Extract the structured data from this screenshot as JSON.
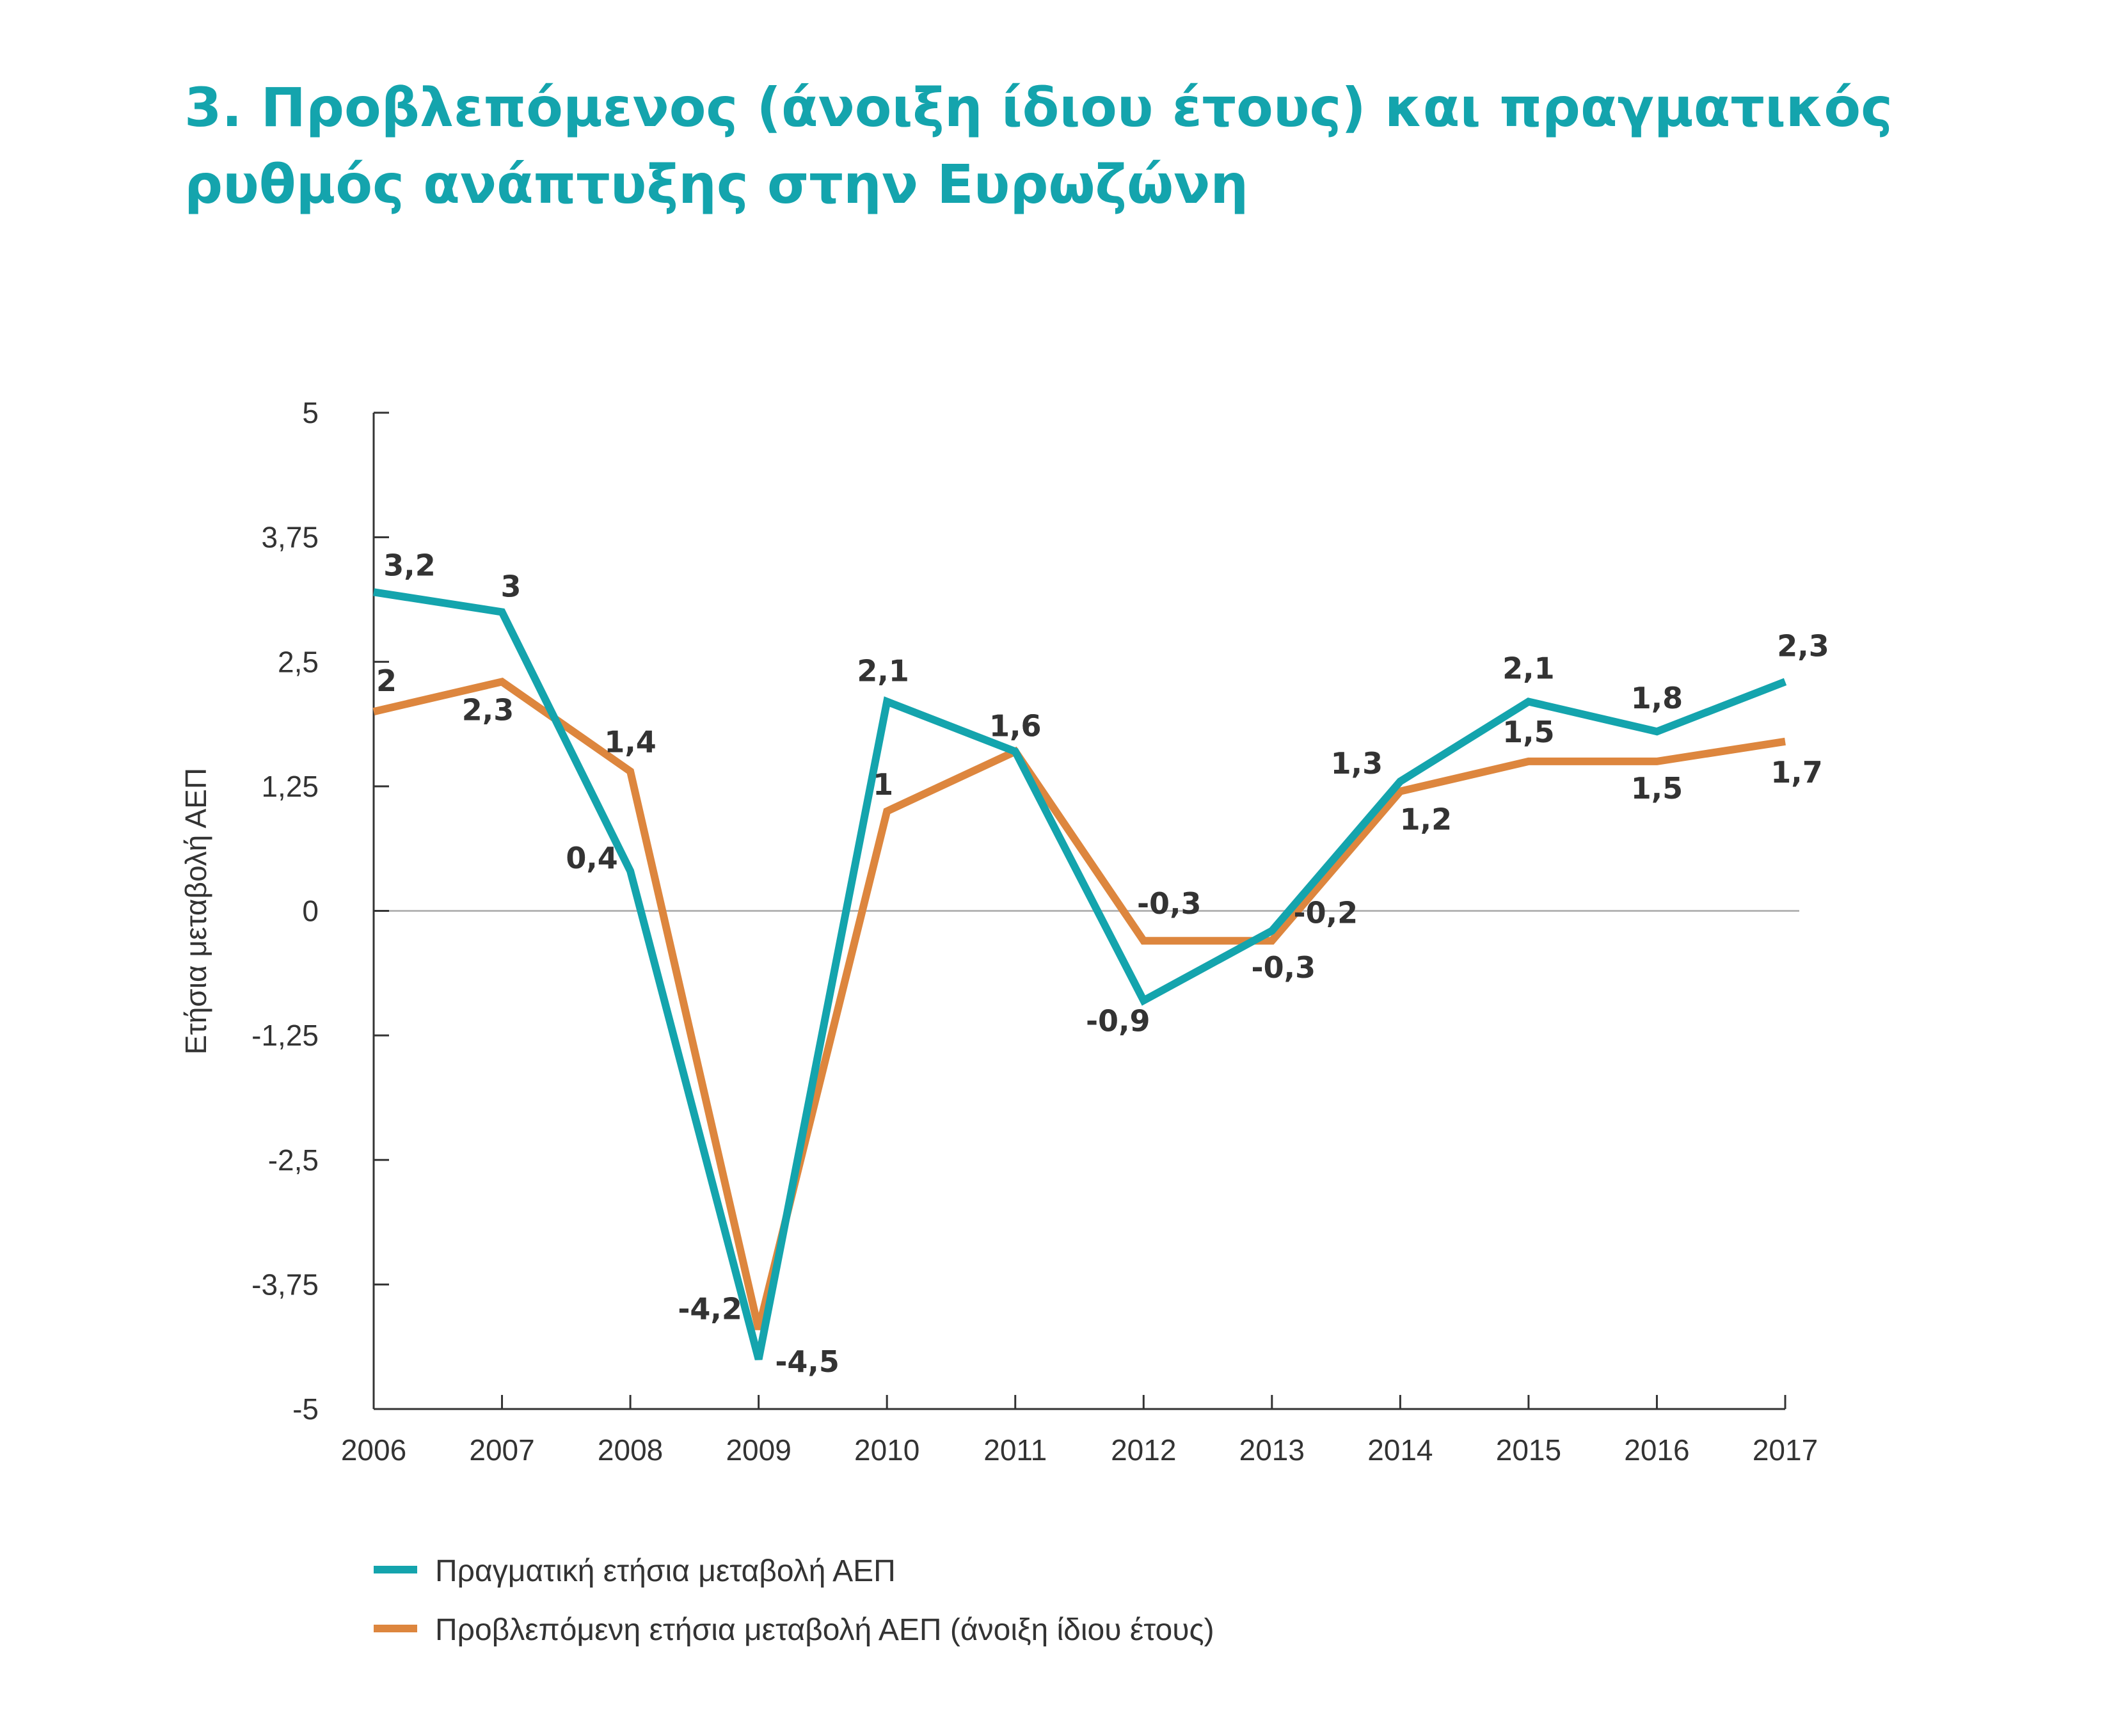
{
  "title": {
    "line1": "3. Προβλεπόμενος (άνοιξη ίδιου έτους) και πραγματικός",
    "line2": "ρυθμός ανάπτυξης στην Ευρωζώνη"
  },
  "colors": {
    "actual": "#14a4ad",
    "forecast": "#dd863e",
    "title": "#14a4ad",
    "axis": "#333333",
    "zero_line": "#b5b5b5",
    "label": "#333333"
  },
  "chart_data": {
    "type": "line",
    "title": "3. Προβλεπόμενος (άνοιξη ίδιου έτους) και πραγματικός ρυθμός ανάπτυξης στην Ευρωζώνη",
    "xlabel": "",
    "ylabel": "Ετήσια μεταβολή ΑΕΠ",
    "categories": [
      "2006",
      "2007",
      "2008",
      "2009",
      "2010",
      "2011",
      "2012",
      "2013",
      "2014",
      "2015",
      "2016",
      "2017"
    ],
    "series": [
      {
        "name": "Πραγματική ετήσια μεταβολή ΑΕΠ",
        "color": "#14a4ad",
        "values": [
          3.2,
          3,
          0.4,
          -4.5,
          2.1,
          1.6,
          -0.9,
          -0.2,
          1.3,
          2.1,
          1.8,
          2.3
        ],
        "labels": [
          "3,2",
          "3",
          "0,4",
          "-4,5",
          "2,1",
          "1,6",
          "-0,9",
          "-0,2",
          "1,3",
          "2,1",
          "1,8",
          "2,3"
        ]
      },
      {
        "name": "Προβλεπόμενη ετήσια μεταβολή ΑΕΠ (άνοιξη ίδιου έτους)",
        "color": "#dd863e",
        "values": [
          2,
          2.3,
          1.4,
          -4.2,
          1,
          1.6,
          -0.3,
          -0.3,
          1.2,
          1.5,
          1.5,
          1.7
        ],
        "labels": [
          "2",
          "2,3",
          "1,4",
          "-4,2",
          "1",
          "1,6",
          "-0,3",
          "-0,3",
          "1,2",
          "1,5",
          "1,5",
          "1,7"
        ]
      }
    ],
    "ylim": [
      -5,
      5
    ],
    "yticks": [
      5,
      3.75,
      2.5,
      1.25,
      0,
      -1.25,
      -2.5,
      -3.75,
      -5
    ],
    "ytick_labels": [
      "5",
      "3,75",
      "2,5",
      "1,25",
      "0",
      "-1,25",
      "-2,5",
      "-3,75",
      "-5"
    ],
    "grid": false,
    "zero_line": true,
    "legend_position": "bottom-left"
  }
}
